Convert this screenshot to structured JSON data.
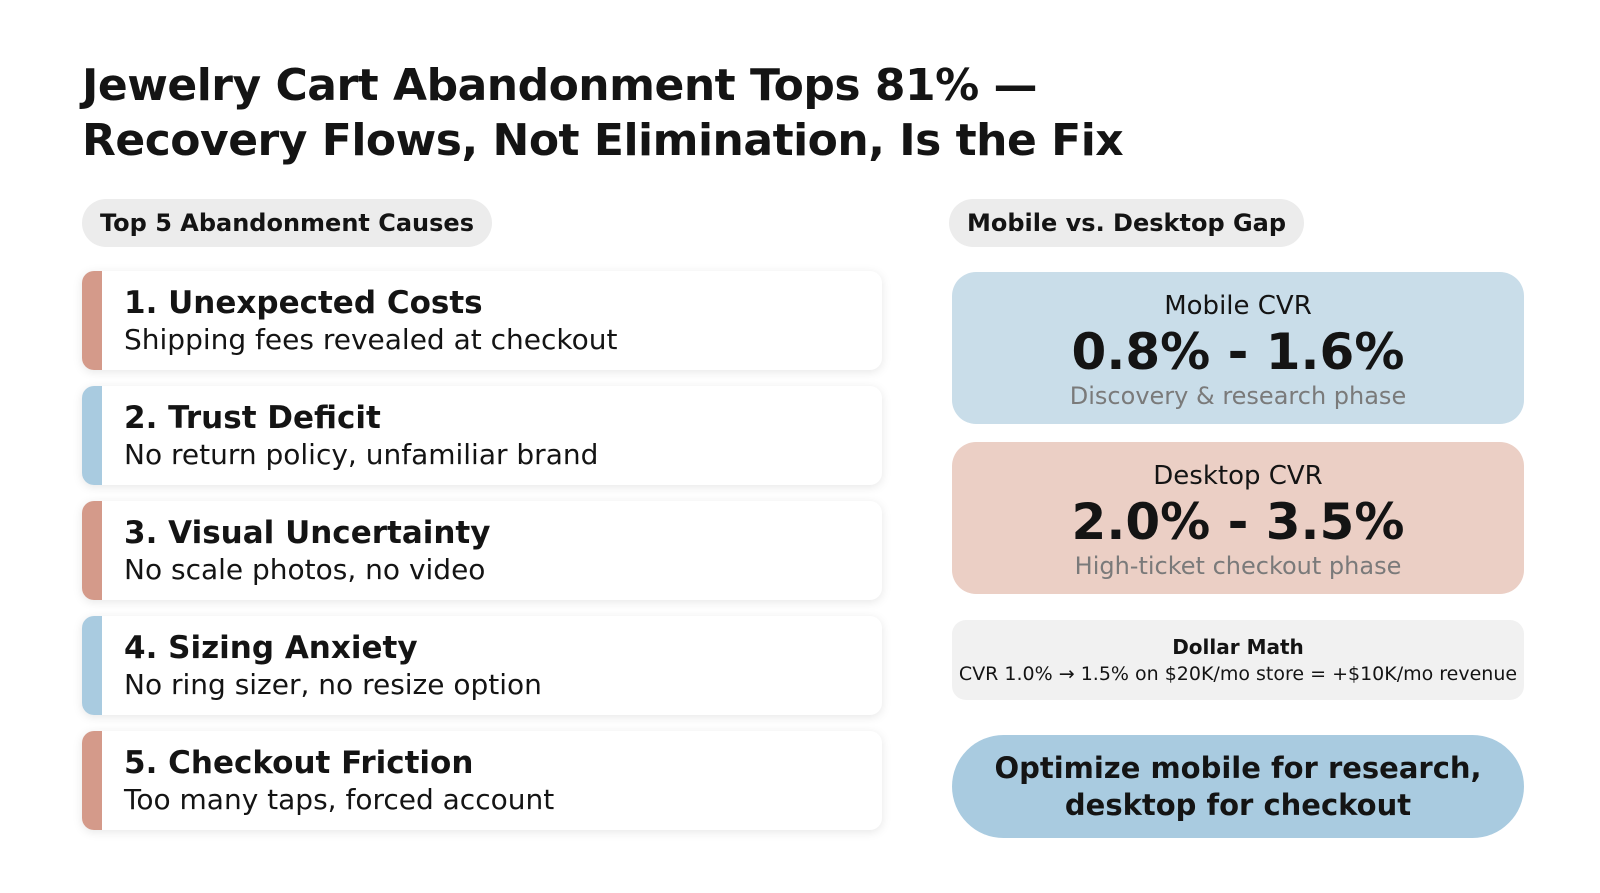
{
  "title": {
    "line1": "Jewelry Cart Abandonment Tops 81% —",
    "line2": "Recovery Flows, Not Elimination, Is the Fix"
  },
  "causes_section": {
    "label": "Top 5 Abandonment Causes",
    "items": [
      {
        "title": "1.  Unexpected Costs",
        "desc": "Shipping fees revealed at checkout",
        "accent": "#d49a8a"
      },
      {
        "title": "2. Trust Deficit",
        "desc": "No return policy, unfamiliar brand",
        "accent": "#a9cbe0"
      },
      {
        "title": "3. Visual Uncertainty",
        "desc": "No scale photos, no video",
        "accent": "#d49a8a"
      },
      {
        "title": "4. Sizing Anxiety",
        "desc": "No ring sizer, no resize option",
        "accent": "#a9cbe0"
      },
      {
        "title": "5. Checkout Friction",
        "desc": "Too many taps, forced account",
        "accent": "#d49a8a"
      }
    ]
  },
  "gap_section": {
    "label": "Mobile vs. Desktop Gap",
    "mobile": {
      "label": "Mobile CVR",
      "value": "0.8% - 1.6%",
      "sub": "Discovery & research phase",
      "color": "#c9dde9"
    },
    "desktop": {
      "label": "Desktop CVR",
      "value": "2.0% - 3.5%",
      "sub": "High-ticket checkout phase",
      "color": "#ebcfc5"
    },
    "math": {
      "title": "Dollar Math",
      "body": "CVR 1.0% → 1.5% on $20K/mo store = +$10K/mo revenue"
    },
    "cta": {
      "line1": "Optimize mobile for research,",
      "line2": "desktop for checkout",
      "color": "#a9cbe0"
    }
  }
}
